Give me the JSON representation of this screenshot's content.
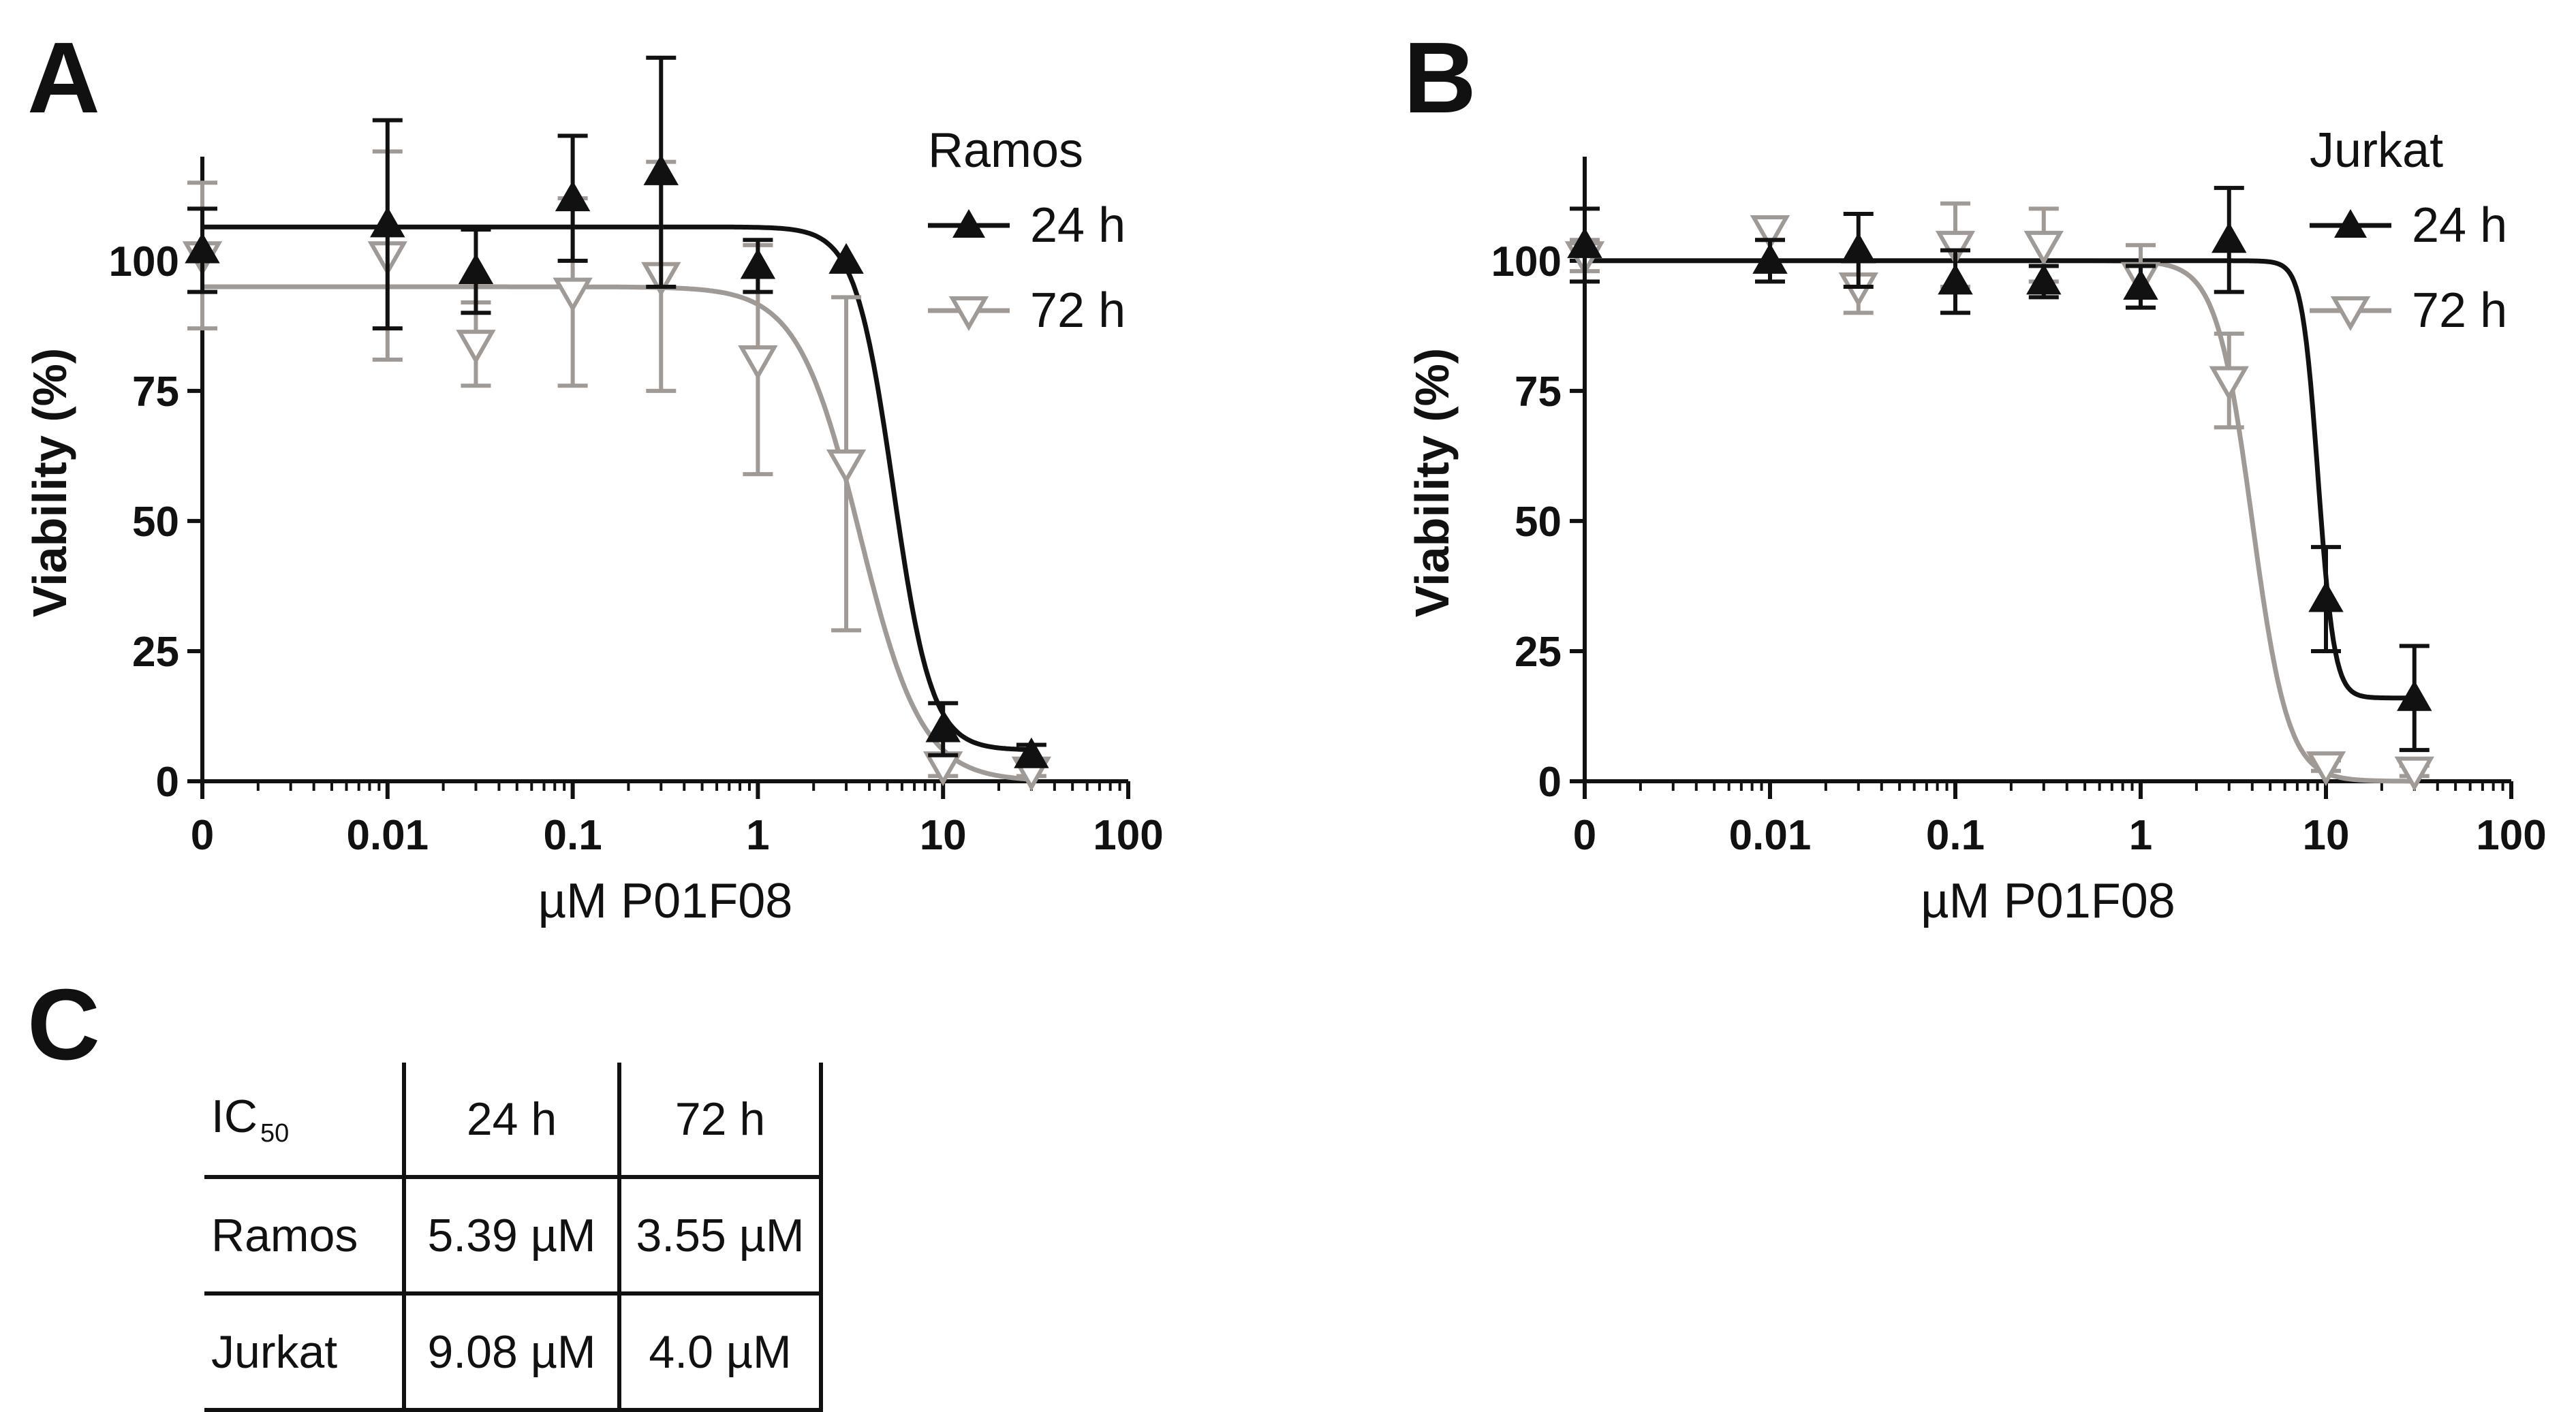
{
  "figure": {
    "panel_letters": {
      "a": "A",
      "b": "B",
      "c": "C"
    },
    "colors": {
      "h24": "#111111",
      "h72": "#a09a97"
    }
  },
  "chart_data": [
    {
      "id": "A",
      "type": "scatter",
      "title": "Ramos",
      "xlabel": "µM P01F08",
      "ylabel": "Viability (%)",
      "xscale": "log",
      "x_tick_values": [
        0.001,
        0.01,
        0.1,
        1,
        10,
        100
      ],
      "x_tick_labels": [
        "0",
        "0.01",
        "0.1",
        "1",
        "10",
        "100"
      ],
      "ylim": [
        0,
        120
      ],
      "y_ticks": [
        0,
        25,
        50,
        75,
        100
      ],
      "legend_position": "top-right",
      "series": [
        {
          "name": "24 h",
          "marker": "filled-triangle-up",
          "color": "#111111",
          "x": [
            0.001,
            0.01,
            0.03,
            0.1,
            0.3,
            1,
            3,
            10,
            30
          ],
          "y": [
            102,
            107,
            98,
            112,
            117,
            99,
            100,
            10,
            5
          ],
          "err": [
            8,
            20,
            8,
            12,
            22,
            5,
            0,
            5,
            2
          ],
          "fit": {
            "top": 106.5,
            "bottom": 6,
            "ic50": 5.39,
            "hill": 4.2
          }
        },
        {
          "name": "72 h",
          "marker": "open-triangle-down",
          "color": "#a09a97",
          "x": [
            0.001,
            0.01,
            0.03,
            0.1,
            0.3,
            1,
            3,
            10,
            30
          ],
          "y": [
            101,
            101,
            84,
            94,
            97,
            81,
            61,
            3,
            2
          ],
          "err": [
            14,
            20,
            8,
            18,
            22,
            22,
            32,
            2,
            1
          ],
          "fit": {
            "top": 95,
            "bottom": 0,
            "ic50": 3.55,
            "hill": 2.6
          }
        }
      ]
    },
    {
      "id": "B",
      "type": "scatter",
      "title": "Jurkat",
      "xlabel": "µM P01F08",
      "ylabel": "Viability (%)",
      "xscale": "log",
      "x_tick_values": [
        0.001,
        0.01,
        0.1,
        1,
        10,
        100
      ],
      "x_tick_labels": [
        "0",
        "0.01",
        "0.1",
        "1",
        "10",
        "100"
      ],
      "ylim": [
        0,
        120
      ],
      "y_ticks": [
        0,
        25,
        50,
        75,
        100
      ],
      "legend_position": "top-right",
      "series": [
        {
          "name": "24 h",
          "marker": "filled-triangle-up",
          "color": "#111111",
          "x": [
            0.001,
            0.01,
            0.03,
            0.1,
            0.3,
            1,
            3,
            10,
            30
          ],
          "y": [
            103,
            100,
            102,
            96,
            96,
            95,
            104,
            35,
            16
          ],
          "err": [
            7,
            4,
            7,
            6,
            3,
            4,
            10,
            10,
            10
          ],
          "fit": {
            "top": 100,
            "bottom": 16,
            "ic50": 9.08,
            "hill": 10
          }
        },
        {
          "name": "72 h",
          "marker": "open-triangle-down",
          "color": "#a09a97",
          "x": [
            0.001,
            0.01,
            0.03,
            0.1,
            0.3,
            1,
            3,
            10,
            30
          ],
          "y": [
            101,
            106,
            95,
            103,
            103,
            97,
            77,
            3,
            2
          ],
          "err": [
            3,
            2,
            5,
            8,
            7,
            6,
            9,
            1,
            1
          ],
          "fit": {
            "top": 100,
            "bottom": 0,
            "ic50": 4.0,
            "hill": 4.5
          }
        }
      ]
    }
  ],
  "table": {
    "corner_label": "IC",
    "corner_sub": "50",
    "col_headers": [
      "24 h",
      "72 h"
    ],
    "rows": [
      {
        "label": "Ramos",
        "values": [
          "5.39 µM",
          "3.55 µM"
        ]
      },
      {
        "label": "Jurkat",
        "values": [
          "9.08 µM",
          "4.0 µM"
        ]
      }
    ]
  }
}
